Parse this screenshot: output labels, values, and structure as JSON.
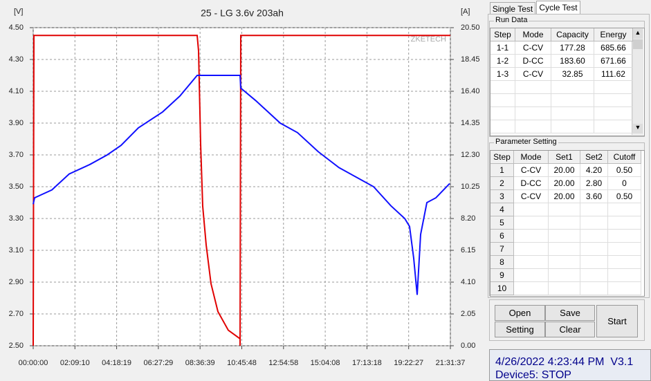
{
  "chart_data": {
    "type": "line",
    "title": "25 - LG 3.6v 203ah",
    "y_label": "[V]",
    "y2_label": "[A]",
    "watermark": "ZKETECH",
    "grid": true,
    "xlim": [
      0,
      77497
    ],
    "xticks": [
      {
        "value": 0,
        "label": "00:00:00"
      },
      {
        "value": 7750,
        "label": "02:09:10"
      },
      {
        "value": 15499,
        "label": "04:18:19"
      },
      {
        "value": 23249,
        "label": "06:27:29"
      },
      {
        "value": 30999,
        "label": "08:36:39"
      },
      {
        "value": 38748,
        "label": "10:45:48"
      },
      {
        "value": 46498,
        "label": "12:54:58"
      },
      {
        "value": 54248,
        "label": "15:04:08"
      },
      {
        "value": 61998,
        "label": "17:13:18"
      },
      {
        "value": 69747,
        "label": "19:22:27"
      },
      {
        "value": 77497,
        "label": "21:31:37"
      }
    ],
    "ylim": [
      2.5,
      4.5
    ],
    "yticks": [
      {
        "value": 2.5,
        "label": "2.50"
      },
      {
        "value": 2.7,
        "label": "2.70"
      },
      {
        "value": 2.9,
        "label": "2.90"
      },
      {
        "value": 3.1,
        "label": "3.10"
      },
      {
        "value": 3.3,
        "label": "3.30"
      },
      {
        "value": 3.5,
        "label": "3.50"
      },
      {
        "value": 3.7,
        "label": "3.70"
      },
      {
        "value": 3.9,
        "label": "3.90"
      },
      {
        "value": 4.1,
        "label": "4.10"
      },
      {
        "value": 4.3,
        "label": "4.30"
      },
      {
        "value": 4.5,
        "label": "4.50"
      }
    ],
    "y2lim": [
      0,
      20.5
    ],
    "y2ticks": [
      {
        "value": 0,
        "label": "0.00"
      },
      {
        "value": 2.05,
        "label": "2.05"
      },
      {
        "value": 4.1,
        "label": "4.10"
      },
      {
        "value": 6.15,
        "label": "6.15"
      },
      {
        "value": 8.2,
        "label": "8.20"
      },
      {
        "value": 10.25,
        "label": "10.25"
      },
      {
        "value": 12.3,
        "label": "12.30"
      },
      {
        "value": 14.35,
        "label": "14.35"
      },
      {
        "value": 16.4,
        "label": "16.40"
      },
      {
        "value": 18.45,
        "label": "18.45"
      },
      {
        "value": 20.5,
        "label": "20.50"
      }
    ],
    "series": [
      {
        "color": "#e00000",
        "axis": "y2",
        "x": [
          0,
          129,
          30459,
          30716,
          31101,
          31487,
          32130,
          33029,
          34315,
          36243,
          38428,
          38428,
          38556,
          77497
        ],
        "values": [
          0,
          20.0,
          20.0,
          19.0,
          13.0,
          9.0,
          6.5,
          4.0,
          2.2,
          1.0,
          0.45,
          0,
          20.0,
          20.0
        ]
      },
      {
        "color": "#1010ff",
        "axis": "y",
        "x": [
          0,
          257,
          1542,
          3470,
          6683,
          10539,
          13752,
          16322,
          19535,
          24033,
          27246,
          30459,
          38428,
          38556,
          41384,
          45882,
          49095,
          52950,
          56806,
          63232,
          66445,
          69015,
          69915,
          70686,
          71329,
          71971,
          73128,
          74799,
          77369
        ],
        "values": [
          3.39,
          3.43,
          3.45,
          3.48,
          3.58,
          3.64,
          3.7,
          3.76,
          3.87,
          3.97,
          4.07,
          4.2,
          4.2,
          4.12,
          4.04,
          3.9,
          3.84,
          3.72,
          3.62,
          3.5,
          3.38,
          3.3,
          3.25,
          3.05,
          2.82,
          3.2,
          3.4,
          3.43,
          3.52
        ]
      }
    ]
  },
  "tabs": [
    "Single Test",
    "Cycle Test"
  ],
  "run_data": {
    "title": "Run Data",
    "columns": [
      "Step",
      "Mode",
      "Capacity",
      "Energy"
    ],
    "rows": [
      [
        "1-1",
        "C-CV",
        "177.28",
        "685.66"
      ],
      [
        "1-2",
        "D-CC",
        "183.60",
        "671.66"
      ],
      [
        "1-3",
        "C-CV",
        "32.85",
        "111.62"
      ]
    ]
  },
  "parameter_setting": {
    "title": "Parameter Setting",
    "columns": [
      "Step",
      "Mode",
      "Set1",
      "Set2",
      "Cutoff"
    ],
    "rows": [
      [
        "1",
        "C-CV",
        "20.00",
        "4.20",
        "0.50"
      ],
      [
        "2",
        "D-CC",
        "20.00",
        "2.80",
        "0"
      ],
      [
        "3",
        "C-CV",
        "20.00",
        "3.60",
        "0.50"
      ],
      [
        "4"
      ],
      [
        "5"
      ],
      [
        "6"
      ],
      [
        "7"
      ],
      [
        "8"
      ],
      [
        "9"
      ],
      [
        "10"
      ]
    ]
  },
  "buttons": [
    "Open",
    "Save",
    "Setting",
    "Clear",
    "Start"
  ],
  "status": {
    "datetime": "4/26/2022 4:23:44 PM",
    "version": "V3.1",
    "device": "Device5: STOP"
  }
}
